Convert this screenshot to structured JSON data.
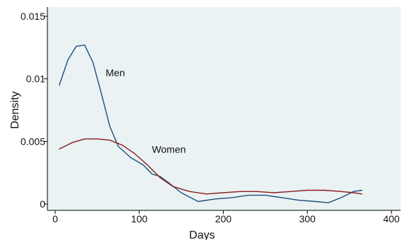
{
  "chart_data": {
    "type": "line",
    "xlabel": "Days",
    "ylabel": "Density",
    "xlim": [
      0,
      400
    ],
    "ylim": [
      0,
      0.015
    ],
    "x_ticks": [
      0,
      100,
      200,
      300,
      400
    ],
    "y_ticks": [
      0,
      0.005,
      0.01,
      0.015
    ],
    "x_tick_labels": [
      "0",
      "100",
      "200",
      "300",
      "400"
    ],
    "y_tick_labels": [
      "0",
      "0.005",
      "0.01",
      "0.015"
    ],
    "grid": false,
    "colors": {
      "plot_background": "#eaf2f3",
      "axis": "#000000"
    },
    "series": [
      {
        "name": "Men",
        "color": "#1f4e79",
        "label_anchor": {
          "x": 60,
          "y": 0.0102
        },
        "x": [
          5,
          15,
          25,
          35,
          45,
          55,
          65,
          75,
          90,
          105,
          115,
          125,
          135,
          150,
          170,
          190,
          210,
          230,
          250,
          270,
          290,
          310,
          325,
          340,
          355,
          365
        ],
        "y": [
          0.0095,
          0.0115,
          0.0126,
          0.0127,
          0.0113,
          0.0088,
          0.0062,
          0.0046,
          0.0037,
          0.0031,
          0.0024,
          0.0022,
          0.0017,
          0.0009,
          0.0002,
          0.0004,
          0.0005,
          0.0007,
          0.0007,
          0.0005,
          0.0003,
          0.0002,
          0.0001,
          0.0005,
          0.001,
          0.0011
        ]
      },
      {
        "name": "Women",
        "color": "#8b1a1a",
        "label_anchor": {
          "x": 115,
          "y": 0.0041
        },
        "x": [
          5,
          20,
          35,
          50,
          65,
          80,
          95,
          110,
          125,
          140,
          160,
          180,
          200,
          220,
          240,
          260,
          280,
          300,
          320,
          340,
          355,
          365
        ],
        "y": [
          0.0044,
          0.0049,
          0.0052,
          0.0052,
          0.0051,
          0.0047,
          0.004,
          0.0031,
          0.0021,
          0.0014,
          0.001,
          0.0008,
          0.0009,
          0.001,
          0.001,
          0.0009,
          0.001,
          0.0011,
          0.0011,
          0.001,
          0.0009,
          0.0008
        ]
      }
    ]
  }
}
